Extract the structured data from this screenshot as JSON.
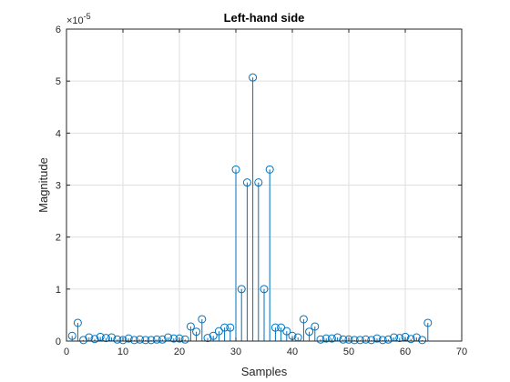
{
  "chart_data": {
    "type": "stem",
    "title": "Left-hand side",
    "xlabel": "Samples",
    "ylabel": "Magnitude",
    "y_exponent_label": "×10",
    "y_exponent_power": "-5",
    "xlim": [
      0,
      70
    ],
    "ylim": [
      0,
      6
    ],
    "grid": true,
    "xticks": [
      0,
      10,
      20,
      30,
      40,
      50,
      60,
      70
    ],
    "yticks": [
      0,
      1,
      2,
      3,
      4,
      5,
      6
    ],
    "colors": {
      "stem": "#0072BD",
      "grid": "#DFDFDF",
      "axis": "#262626"
    },
    "x": [
      1,
      2,
      3,
      4,
      5,
      6,
      7,
      8,
      9,
      10,
      11,
      12,
      13,
      14,
      15,
      16,
      17,
      18,
      19,
      20,
      21,
      22,
      23,
      24,
      25,
      26,
      27,
      28,
      29,
      30,
      31,
      32,
      33,
      34,
      35,
      36,
      37,
      38,
      39,
      40,
      41,
      42,
      43,
      44,
      45,
      46,
      47,
      48,
      49,
      50,
      51,
      52,
      53,
      54,
      55,
      56,
      57,
      58,
      59,
      60,
      61,
      62,
      63,
      64
    ],
    "y": [
      0.1,
      0.35,
      0.02,
      0.07,
      0.04,
      0.08,
      0.06,
      0.07,
      0.03,
      0.02,
      0.05,
      0.02,
      0.03,
      0.02,
      0.02,
      0.03,
      0.03,
      0.07,
      0.05,
      0.05,
      0.03,
      0.28,
      0.18,
      0.42,
      0.06,
      0.1,
      0.19,
      0.26,
      0.26,
      3.3,
      1.0,
      3.05,
      5.07,
      3.05,
      1.0,
      3.3,
      0.26,
      0.26,
      0.19,
      0.1,
      0.07,
      0.42,
      0.18,
      0.28,
      0.03,
      0.05,
      0.05,
      0.07,
      0.03,
      0.03,
      0.02,
      0.02,
      0.03,
      0.02,
      0.05,
      0.02,
      0.03,
      0.07,
      0.06,
      0.08,
      0.04,
      0.07,
      0.02,
      0.35
    ]
  }
}
